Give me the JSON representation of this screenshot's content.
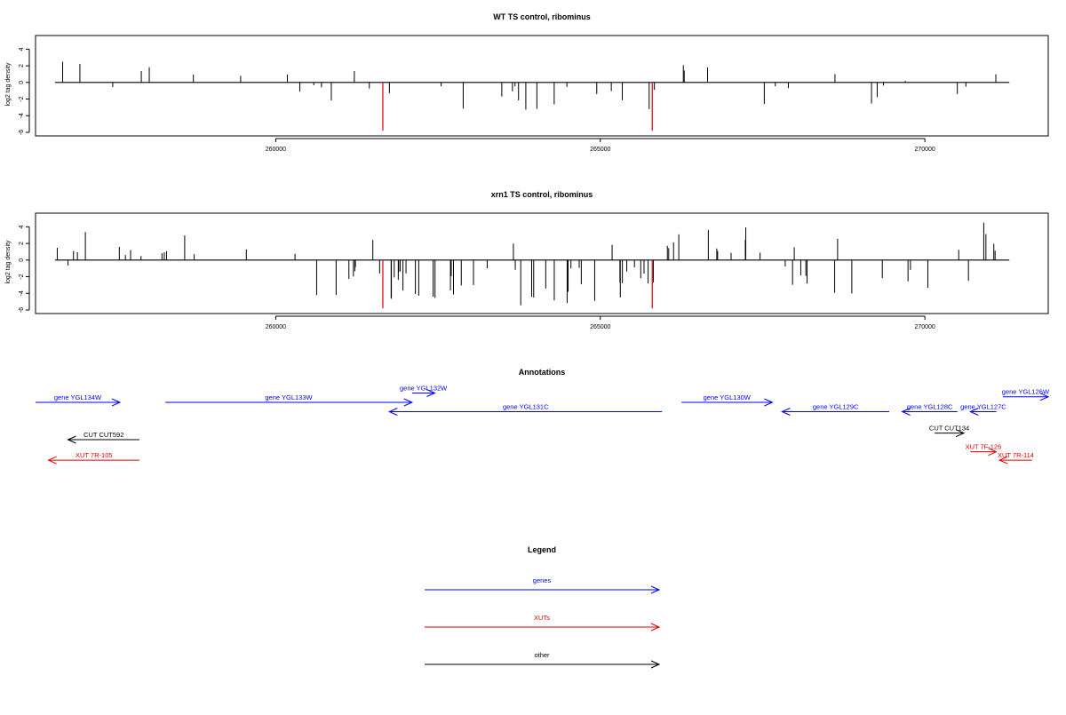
{
  "chart_data": [
    {
      "type": "bar",
      "title": "WT TS control, ribominus",
      "ylabel": "log2 tag density",
      "xlabel": "",
      "xlim": [
        256300,
        271900
      ],
      "ylim": [
        -6,
        5
      ],
      "x_ticks": [
        260000,
        265000,
        270000
      ],
      "x_tick_labels": [
        "260000",
        "265000",
        "270000"
      ],
      "y_ticks": [
        -6,
        -4,
        -2,
        0,
        2,
        4
      ],
      "y_tick_labels": [
        "-6",
        "-4",
        "-2",
        "0",
        "2",
        "4"
      ],
      "grid": false,
      "bar_color": "#000000",
      "marker_color": "#e00000",
      "markers": [
        {
          "x": 261650,
          "y": -5.8
        },
        {
          "x": 265800,
          "y": -5.8
        }
      ],
      "x_range": [
        256600,
        271300
      ],
      "regions": [
        {
          "x": [
            256600,
            260300
          ],
          "sign": "pos",
          "density": 0.038,
          "min": 0.3,
          "max": 3.0,
          "neg_frac": 0.08
        },
        {
          "x": [
            260300,
            262300
          ],
          "sign": "neg",
          "density": 0.04,
          "min": 0.3,
          "max": 3.2,
          "neg_frac": 0.0,
          "pos_frac": 0.2
        },
        {
          "x": [
            262300,
            265900
          ],
          "sign": "neg",
          "density": 0.05,
          "min": 0.4,
          "max": 3.6,
          "pos_frac": 0.05
        },
        {
          "x": [
            265900,
            267400
          ],
          "sign": "pos",
          "density": 0.035,
          "min": 0.5,
          "max": 3.0,
          "neg_frac": 0.05
        },
        {
          "x": [
            267400,
            269600
          ],
          "sign": "neg",
          "density": 0.03,
          "min": 0.3,
          "max": 2.6,
          "pos_frac": 0.1
        },
        {
          "x": [
            269600,
            270300
          ],
          "sign": "neg",
          "density": 0.02,
          "min": 0.3,
          "max": 1.8,
          "pos_frac": 0.2
        },
        {
          "x": [
            270300,
            270900
          ],
          "sign": "neg",
          "density": 0.035,
          "min": 0.3,
          "max": 2.2,
          "pos_frac": 0.1
        },
        {
          "x": [
            270900,
            271300
          ],
          "sign": "pos",
          "density": 0.06,
          "min": 0.5,
          "max": 2.8,
          "neg_frac": 0.05
        }
      ],
      "seed": 11
    },
    {
      "type": "bar",
      "title": "xrn1 TS control, ribominus",
      "ylabel": "log2 tag density",
      "xlabel": "",
      "xlim": [
        256300,
        271900
      ],
      "ylim": [
        -6,
        5
      ],
      "x_ticks": [
        260000,
        265000,
        270000
      ],
      "x_tick_labels": [
        "260000",
        "265000",
        "270000"
      ],
      "y_ticks": [
        -6,
        -4,
        -2,
        0,
        2,
        4
      ],
      "y_tick_labels": [
        "-6",
        "-4",
        "-2",
        "0",
        "2",
        "4"
      ],
      "grid": false,
      "bar_color": "#000000",
      "marker_color": "#e00000",
      "markers": [
        {
          "x": 261650,
          "y": -5.8
        },
        {
          "x": 265800,
          "y": -5.8
        }
      ],
      "x_range": [
        256600,
        271300
      ],
      "regions": [
        {
          "x": [
            256600,
            257400
          ],
          "sign": "pos",
          "density": 0.14,
          "min": 0.8,
          "max": 4.6,
          "neg_frac": 0.04
        },
        {
          "x": [
            257400,
            260200
          ],
          "sign": "pos",
          "density": 0.06,
          "min": 0.4,
          "max": 4.0,
          "neg_frac": 0.05
        },
        {
          "x": [
            260200,
            261700
          ],
          "sign": "neg",
          "density": 0.08,
          "min": 0.5,
          "max": 4.5,
          "pos_frac": 0.25
        },
        {
          "x": [
            261700,
            265900
          ],
          "sign": "neg",
          "density": 0.13,
          "min": 0.8,
          "max": 5.6,
          "pos_frac": 0.03
        },
        {
          "x": [
            265900,
            267500
          ],
          "sign": "pos",
          "density": 0.11,
          "min": 0.8,
          "max": 4.6,
          "neg_frac": 0.03
        },
        {
          "x": [
            267500,
            269400
          ],
          "sign": "neg",
          "density": 0.09,
          "min": 0.5,
          "max": 4.4,
          "pos_frac": 0.05
        },
        {
          "x": [
            269400,
            270900
          ],
          "sign": "neg",
          "density": 0.06,
          "min": 0.5,
          "max": 4.2,
          "pos_frac": 0.05
        },
        {
          "x": [
            270900,
            271300
          ],
          "sign": "pos",
          "density": 0.15,
          "min": 1.0,
          "max": 4.8,
          "neg_frac": 0.06
        }
      ],
      "seed": 37
    }
  ],
  "annotations": {
    "title": "Annotations",
    "tracks": [
      {
        "label": "gene YGL134W",
        "x1": 256300,
        "x2": 257600,
        "row": 0,
        "dir": "right",
        "color": "#0000ff"
      },
      {
        "label": "gene YGL133W",
        "x1": 258300,
        "x2": 262100,
        "row": 0,
        "dir": "right",
        "color": "#0000ff"
      },
      {
        "label": "gene YGL132W",
        "x1": 262100,
        "x2": 262450,
        "row": -1,
        "dir": "right",
        "color": "#0000ff"
      },
      {
        "label": "gene YGL131C",
        "x1": 261750,
        "x2": 265950,
        "row": 1,
        "dir": "left",
        "color": "#0000ff"
      },
      {
        "label": "gene YGL130W",
        "x1": 266250,
        "x2": 267650,
        "row": 0,
        "dir": "right",
        "color": "#0000ff"
      },
      {
        "label": "gene YGL129C",
        "x1": 267800,
        "x2": 269450,
        "row": 1,
        "dir": "left",
        "color": "#0000ff"
      },
      {
        "label": "gene YGL128C",
        "x1": 269650,
        "x2": 270500,
        "row": 1,
        "dir": "left",
        "color": "#0000ff"
      },
      {
        "label": "gene YGL127C",
        "x1": 270700,
        "x2": 271100,
        "row": 1,
        "dir": "left",
        "color": "#0000ff"
      },
      {
        "label": "gene YGL126W",
        "x1": 271200,
        "x2": 271900,
        "row": -0.6,
        "dir": "right",
        "color": "#0000ff"
      },
      {
        "label": "CUT CUT592",
        "x1": 256800,
        "x2": 257900,
        "row": 4,
        "dir": "left",
        "color": "#000000"
      },
      {
        "label": "XUT 7R-105",
        "x1": 256500,
        "x2": 257900,
        "row": 6.2,
        "dir": "left",
        "color": "#e00000"
      },
      {
        "label": "CUT CUT134",
        "x1": 270150,
        "x2": 270600,
        "row": 3.3,
        "dir": "right",
        "color": "#000000"
      },
      {
        "label": "XUT 7F-126",
        "x1": 270700,
        "x2": 271100,
        "row": 5.3,
        "dir": "right",
        "color": "#e00000"
      },
      {
        "label": "XUT 7R-114",
        "x1": 271150,
        "x2": 271650,
        "row": 6.2,
        "dir": "left",
        "color": "#e00000"
      }
    ]
  },
  "legend": {
    "title": "Legend",
    "items": [
      {
        "label": "genes",
        "color": "#0000ff"
      },
      {
        "label": "XUTs",
        "color": "#e00000"
      },
      {
        "label": "other",
        "color": "#000000"
      }
    ]
  }
}
